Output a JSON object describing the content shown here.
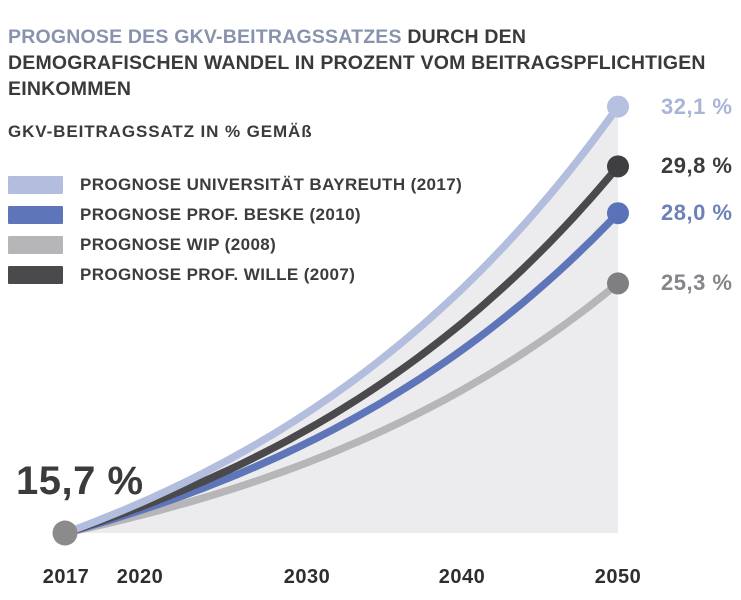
{
  "title": {
    "highlight": "PROGNOSE DES GKV-BEITRAGSSATZES",
    "rest": " DURCH DEN DEMOGRAFISCHEN WANDEL IN PROZENT VOM BEITRAGSPFLICHTIGEN EINKOMMEN",
    "highlight_color": "#8a93ae",
    "text_color": "#3a3a3c"
  },
  "legend": {
    "title": "GKV-BEITRAGSSATZ IN % GEMÄß"
  },
  "chart_data": {
    "type": "line",
    "unit": "%",
    "x_ticks": [
      "2017",
      "2020",
      "2030",
      "2040",
      "2050"
    ],
    "x_range": [
      2017,
      2050
    ],
    "y_range": [
      15.7,
      32.1
    ],
    "grid": false,
    "legend_position": "top-left",
    "curve_shape": "exponential-growth",
    "start": {
      "year": "2017",
      "value": 15.7,
      "label": "15,7 %",
      "dot_color": "#8b8b8d"
    },
    "series": [
      {
        "name": "PROGNOSE UNIVERSITÄT BAYREUTH (2017)",
        "value_2050": 32.1,
        "end_label": "32,1 %",
        "color": "#b3bede",
        "dot_color": "#b6c0e0",
        "label_color": "#a9b4d6"
      },
      {
        "name": "PROGNOSE PROF. BESKE (2010)",
        "value_2050": 28.0,
        "end_label": "28,0 %",
        "color": "#5e76b9",
        "dot_color": "#5a72b8",
        "label_color": "#6d81b6"
      },
      {
        "name": "PROGNOSE WIP (2008)",
        "value_2050": 25.3,
        "end_label": "25,3 %",
        "color": "#b6b6b8",
        "dot_color": "#7f7f81",
        "label_color": "#85858a"
      },
      {
        "name": "PROGNOSE PROF. WILLE (2007)",
        "value_2050": 29.8,
        "end_label": "29,8 %",
        "color": "#4a4a4c",
        "dot_color": "#3f3f42",
        "label_color": "#3b3b3d"
      }
    ],
    "area_fill": {
      "under_series": 0,
      "color": "#ececee"
    }
  }
}
